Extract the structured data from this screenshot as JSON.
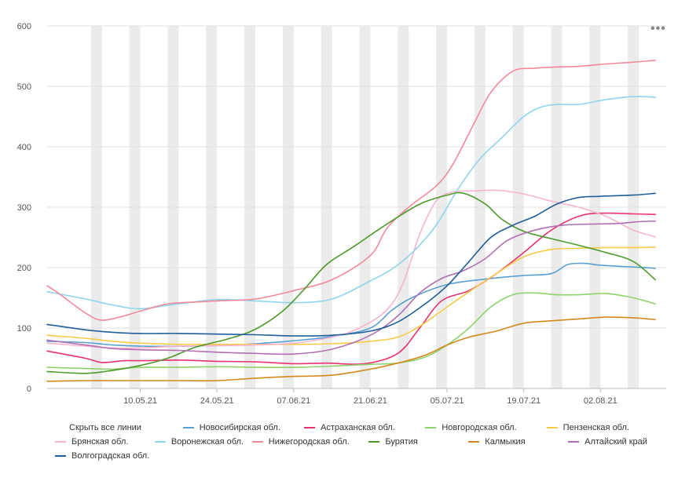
{
  "menu_icon": "more-horizontal-icon",
  "legend": {
    "hide_all": "Скрыть все линии"
  },
  "chart_data": {
    "type": "line",
    "y_ticks": [
      "0",
      "100",
      "200",
      "300",
      "400",
      "500",
      "600"
    ],
    "ylim": [
      0,
      600
    ],
    "x_ticks": [
      "10.05.21",
      "24.05.21",
      "07.06.21",
      "21.06.21",
      "05.07.21",
      "19.07.21",
      "02.08.21"
    ],
    "x_tick_days": [
      10,
      24,
      38,
      52,
      66,
      80,
      94
    ],
    "x_range_days": [
      -7,
      106
    ],
    "weekend_shading": true,
    "grid": "horizontal",
    "legend_position": "bottom",
    "series": [
      {
        "name": "Новосибирская обл.",
        "color": "#5a9fd4",
        "points": [
          [
            -7,
            78
          ],
          [
            0,
            76
          ],
          [
            5,
            72
          ],
          [
            10,
            70
          ],
          [
            17,
            70
          ],
          [
            24,
            71
          ],
          [
            31,
            74
          ],
          [
            38,
            79
          ],
          [
            45,
            86
          ],
          [
            52,
            100
          ],
          [
            56,
            130
          ],
          [
            60,
            152
          ],
          [
            66,
            172
          ],
          [
            73,
            181
          ],
          [
            80,
            187
          ],
          [
            85,
            190
          ],
          [
            88,
            205
          ],
          [
            91,
            207
          ],
          [
            94,
            204
          ],
          [
            100,
            201
          ],
          [
            104,
            199
          ]
        ]
      },
      {
        "name": "Астраханская обл.",
        "color": "#e8336b",
        "points": [
          [
            -7,
            62
          ],
          [
            0,
            50
          ],
          [
            3,
            43
          ],
          [
            7,
            46
          ],
          [
            10,
            46
          ],
          [
            17,
            47
          ],
          [
            24,
            45
          ],
          [
            31,
            44
          ],
          [
            38,
            41
          ],
          [
            44,
            42
          ],
          [
            51,
            41
          ],
          [
            57,
            58
          ],
          [
            61,
            100
          ],
          [
            65,
            145
          ],
          [
            70,
            162
          ],
          [
            75,
            190
          ],
          [
            80,
            225
          ],
          [
            85,
            262
          ],
          [
            90,
            285
          ],
          [
            94,
            290
          ],
          [
            100,
            289
          ],
          [
            104,
            288
          ]
        ]
      },
      {
        "name": "Новгородская обл.",
        "color": "#8dd36b",
        "points": [
          [
            -7,
            35
          ],
          [
            0,
            33
          ],
          [
            5,
            32
          ],
          [
            10,
            35
          ],
          [
            17,
            35
          ],
          [
            24,
            36
          ],
          [
            31,
            35
          ],
          [
            38,
            35
          ],
          [
            45,
            37
          ],
          [
            52,
            40
          ],
          [
            57,
            42
          ],
          [
            62,
            52
          ],
          [
            66,
            72
          ],
          [
            70,
            100
          ],
          [
            74,
            135
          ],
          [
            78,
            155
          ],
          [
            82,
            158
          ],
          [
            86,
            155
          ],
          [
            90,
            155
          ],
          [
            95,
            157
          ],
          [
            100,
            150
          ],
          [
            104,
            140
          ]
        ]
      },
      {
        "name": "Пензенская обл.",
        "color": "#f7c948",
        "points": [
          [
            -7,
            88
          ],
          [
            0,
            83
          ],
          [
            5,
            78
          ],
          [
            10,
            75
          ],
          [
            17,
            73
          ],
          [
            24,
            73
          ],
          [
            31,
            73
          ],
          [
            38,
            73
          ],
          [
            45,
            74
          ],
          [
            52,
            78
          ],
          [
            57,
            85
          ],
          [
            61,
            103
          ],
          [
            66,
            135
          ],
          [
            70,
            160
          ],
          [
            75,
            190
          ],
          [
            80,
            218
          ],
          [
            85,
            230
          ],
          [
            90,
            232
          ],
          [
            95,
            233
          ],
          [
            100,
            233
          ],
          [
            104,
            234
          ]
        ]
      },
      {
        "name": "Брянская обл.",
        "color": "#f7b3cf",
        "points": [
          [
            -7,
            75
          ],
          [
            0,
            70
          ],
          [
            5,
            67
          ],
          [
            10,
            67
          ],
          [
            17,
            70
          ],
          [
            24,
            71
          ],
          [
            31,
            72
          ],
          [
            38,
            75
          ],
          [
            45,
            85
          ],
          [
            50,
            100
          ],
          [
            55,
            130
          ],
          [
            58,
            175
          ],
          [
            61,
            255
          ],
          [
            64,
            310
          ],
          [
            67,
            325
          ],
          [
            71,
            327
          ],
          [
            75,
            328
          ],
          [
            80,
            322
          ],
          [
            85,
            310
          ],
          [
            90,
            300
          ],
          [
            95,
            285
          ],
          [
            100,
            262
          ],
          [
            104,
            251
          ]
        ]
      },
      {
        "name": "Воронежская обл.",
        "color": "#8fd4ee",
        "points": [
          [
            -7,
            160
          ],
          [
            0,
            148
          ],
          [
            5,
            138
          ],
          [
            10,
            132
          ],
          [
            17,
            140
          ],
          [
            24,
            147
          ],
          [
            31,
            145
          ],
          [
            38,
            142
          ],
          [
            45,
            148
          ],
          [
            52,
            178
          ],
          [
            56,
            198
          ],
          [
            60,
            228
          ],
          [
            64,
            270
          ],
          [
            68,
            330
          ],
          [
            72,
            380
          ],
          [
            76,
            415
          ],
          [
            80,
            450
          ],
          [
            83,
            465
          ],
          [
            86,
            470
          ],
          [
            90,
            470
          ],
          [
            95,
            478
          ],
          [
            100,
            483
          ],
          [
            104,
            482
          ]
        ]
      },
      {
        "name": "Нижегородская обл.",
        "color": "#f2899b",
        "points": [
          [
            -7,
            170
          ],
          [
            -5,
            158
          ],
          [
            0,
            125
          ],
          [
            3,
            113
          ],
          [
            7,
            120
          ],
          [
            10,
            128
          ],
          [
            15,
            140
          ],
          [
            20,
            143
          ],
          [
            24,
            145
          ],
          [
            31,
            148
          ],
          [
            38,
            162
          ],
          [
            45,
            180
          ],
          [
            52,
            220
          ],
          [
            55,
            265
          ],
          [
            59,
            300
          ],
          [
            64,
            335
          ],
          [
            67,
            370
          ],
          [
            71,
            440
          ],
          [
            74,
            490
          ],
          [
            78,
            525
          ],
          [
            82,
            530
          ],
          [
            86,
            532
          ],
          [
            90,
            533
          ],
          [
            95,
            537
          ],
          [
            100,
            540
          ],
          [
            104,
            543
          ]
        ]
      },
      {
        "name": "Бурятия",
        "color": "#4c9a2a",
        "points": [
          [
            -7,
            28
          ],
          [
            0,
            25
          ],
          [
            5,
            30
          ],
          [
            10,
            38
          ],
          [
            15,
            50
          ],
          [
            20,
            68
          ],
          [
            26,
            82
          ],
          [
            31,
            98
          ],
          [
            36,
            128
          ],
          [
            40,
            165
          ],
          [
            44,
            205
          ],
          [
            49,
            235
          ],
          [
            55,
            272
          ],
          [
            61,
            305
          ],
          [
            66,
            320
          ],
          [
            69,
            323
          ],
          [
            73,
            305
          ],
          [
            76,
            280
          ],
          [
            80,
            260
          ],
          [
            85,
            248
          ],
          [
            90,
            237
          ],
          [
            95,
            225
          ],
          [
            100,
            210
          ],
          [
            104,
            180
          ]
        ]
      },
      {
        "name": "Калмыкия",
        "color": "#d4891c",
        "points": [
          [
            -7,
            12
          ],
          [
            0,
            13
          ],
          [
            5,
            13
          ],
          [
            10,
            13
          ],
          [
            17,
            13
          ],
          [
            24,
            13
          ],
          [
            31,
            17
          ],
          [
            38,
            20
          ],
          [
            45,
            22
          ],
          [
            52,
            32
          ],
          [
            57,
            42
          ],
          [
            62,
            55
          ],
          [
            66,
            72
          ],
          [
            70,
            85
          ],
          [
            75,
            95
          ],
          [
            80,
            108
          ],
          [
            85,
            112
          ],
          [
            90,
            115
          ],
          [
            95,
            118
          ],
          [
            100,
            117
          ],
          [
            104,
            114
          ]
        ]
      },
      {
        "name": "Алтайский край",
        "color": "#b26fb3",
        "points": [
          [
            -7,
            80
          ],
          [
            0,
            72
          ],
          [
            5,
            66
          ],
          [
            10,
            64
          ],
          [
            17,
            63
          ],
          [
            24,
            60
          ],
          [
            31,
            58
          ],
          [
            38,
            57
          ],
          [
            45,
            65
          ],
          [
            52,
            88
          ],
          [
            57,
            120
          ],
          [
            61,
            158
          ],
          [
            65,
            182
          ],
          [
            69,
            195
          ],
          [
            73,
            215
          ],
          [
            77,
            245
          ],
          [
            82,
            262
          ],
          [
            87,
            270
          ],
          [
            92,
            272
          ],
          [
            97,
            273
          ],
          [
            101,
            276
          ],
          [
            104,
            277
          ]
        ]
      },
      {
        "name": "Волгоградская обл.",
        "color": "#1f5e99",
        "points": [
          [
            -7,
            106
          ],
          [
            0,
            97
          ],
          [
            5,
            93
          ],
          [
            10,
            91
          ],
          [
            17,
            91
          ],
          [
            24,
            90
          ],
          [
            31,
            89
          ],
          [
            38,
            87
          ],
          [
            45,
            88
          ],
          [
            52,
            95
          ],
          [
            57,
            110
          ],
          [
            62,
            140
          ],
          [
            66,
            170
          ],
          [
            70,
            210
          ],
          [
            74,
            250
          ],
          [
            78,
            270
          ],
          [
            82,
            285
          ],
          [
            86,
            305
          ],
          [
            90,
            316
          ],
          [
            94,
            318
          ],
          [
            100,
            320
          ],
          [
            104,
            323
          ]
        ]
      }
    ]
  }
}
